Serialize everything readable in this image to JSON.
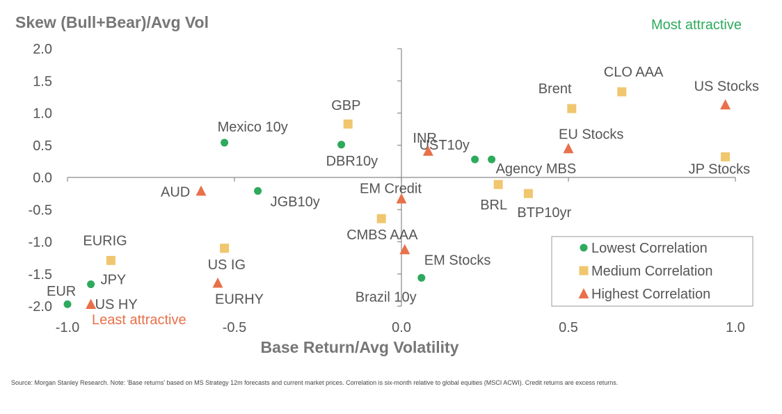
{
  "chart_data": {
    "type": "scatter",
    "ylabel": "Skew (Bull+Bear)/Avg Vol",
    "xlabel": "Base Return/Avg Volatility",
    "xlim": [
      -1.0,
      1.0
    ],
    "ylim": [
      -2.0,
      2.0
    ],
    "x_ticks": [
      "-1.0",
      "-0.5",
      "0.0",
      "0.5",
      "1.0"
    ],
    "y_ticks": [
      "2.0",
      "1.5",
      "1.0",
      "0.5",
      "0.0",
      "-0.5",
      "-1.0",
      "-1.5",
      "-2.0"
    ],
    "grid": false,
    "legend_position": "bottom-right",
    "annotations": {
      "top_right": "Most attractive",
      "bottom_left": "Least attractive"
    },
    "series": [
      {
        "name": "Lowest Correlation",
        "marker": "circle",
        "color": "#2eaa5c",
        "points": [
          {
            "label": "Mexico 10y",
            "x": -0.53,
            "y": 0.54
          },
          {
            "label": "DBR10y",
            "x": -0.18,
            "y": 0.51
          },
          {
            "label": "UST10y",
            "x": 0.22,
            "y": 0.28
          },
          {
            "label": "Agency MBS",
            "x": 0.27,
            "y": 0.28
          },
          {
            "label": "JGB10y",
            "x": -0.43,
            "y": -0.21
          },
          {
            "label": "Brazil 10y",
            "x": 0.06,
            "y": -1.56
          },
          {
            "label": "JPY",
            "x": -0.93,
            "y": -1.66
          },
          {
            "label": "EUR",
            "x": -1.0,
            "y": -1.97
          }
        ]
      },
      {
        "name": "Medium Correlation",
        "marker": "square",
        "color": "#f0c66e",
        "points": [
          {
            "label": "GBP",
            "x": -0.16,
            "y": 0.83
          },
          {
            "label": "Brent",
            "x": 0.51,
            "y": 1.07
          },
          {
            "label": "CLO AAA",
            "x": 0.66,
            "y": 1.33
          },
          {
            "label": "JP Stocks",
            "x": 0.97,
            "y": 0.32
          },
          {
            "label": "BRL",
            "x": 0.29,
            "y": -0.11
          },
          {
            "label": "BTP10yr",
            "x": 0.38,
            "y": -0.25
          },
          {
            "label": "CMBS AAA",
            "x": -0.06,
            "y": -0.64
          },
          {
            "label": "US IG",
            "x": -0.53,
            "y": -1.1
          },
          {
            "label": "EURIG",
            "x": -0.87,
            "y": -1.29
          }
        ]
      },
      {
        "name": "Highest Correlation",
        "marker": "triangle",
        "color": "#e8704a",
        "points": [
          {
            "label": "INR",
            "x": 0.08,
            "y": 0.41
          },
          {
            "label": "US Stocks",
            "x": 0.97,
            "y": 1.13
          },
          {
            "label": "EU Stocks",
            "x": 0.5,
            "y": 0.45
          },
          {
            "label": "AUD",
            "x": -0.6,
            "y": -0.21
          },
          {
            "label": "EM Credit",
            "x": 0.0,
            "y": -0.33
          },
          {
            "label": "EM Stocks",
            "x": 0.01,
            "y": -1.12
          },
          {
            "label": "EURHY",
            "x": -0.55,
            "y": -1.64
          },
          {
            "label": "US HY",
            "x": -0.93,
            "y": -1.97
          }
        ]
      }
    ]
  },
  "source_note": "Source: Morgan Stanley Research. Note: 'Base returns' based on MS Strategy 12m forecasts and current market prices. Correlation is six-month relative to global equities (MSCI ACWI). Credit returns are excess returns."
}
